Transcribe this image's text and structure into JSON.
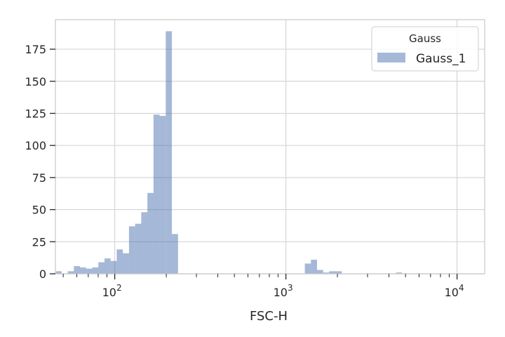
{
  "chart_data": {
    "type": "bar",
    "histogram": true,
    "title": "",
    "xlabel": "FSC-H",
    "ylabel": "",
    "xscale": "log",
    "xlim": [
      45,
      14500
    ],
    "ylim": [
      0,
      198
    ],
    "grid": true,
    "xticks": [
      {
        "value": 100,
        "base": "10",
        "exp": "2"
      },
      {
        "value": 1000,
        "base": "10",
        "exp": "3"
      },
      {
        "value": 10000,
        "base": "10",
        "exp": "4"
      }
    ],
    "yticks": [
      {
        "value": 0,
        "label": "0"
      },
      {
        "value": 25,
        "label": "25"
      },
      {
        "value": 50,
        "label": "50"
      },
      {
        "value": 75,
        "label": "75"
      },
      {
        "value": 100,
        "label": "100"
      },
      {
        "value": 125,
        "label": "125"
      },
      {
        "value": 150,
        "label": "150"
      },
      {
        "value": 175,
        "label": "175"
      }
    ],
    "legend": {
      "title": "Gauss",
      "placement": "top-right"
    },
    "series": [
      {
        "name": "Gauss_1",
        "color": "#4c72b0",
        "bins": [
          {
            "x0": 45.0,
            "x1": 48.9,
            "count": 2
          },
          {
            "x0": 48.9,
            "x1": 53.1,
            "count": 0
          },
          {
            "x0": 53.1,
            "x1": 57.7,
            "count": 2
          },
          {
            "x0": 57.7,
            "x1": 62.6,
            "count": 6
          },
          {
            "x0": 62.6,
            "x1": 68.0,
            "count": 5
          },
          {
            "x0": 68.0,
            "x1": 73.8,
            "count": 4
          },
          {
            "x0": 73.8,
            "x1": 80.2,
            "count": 5
          },
          {
            "x0": 80.2,
            "x1": 87.1,
            "count": 9
          },
          {
            "x0": 87.1,
            "x1": 94.6,
            "count": 12
          },
          {
            "x0": 94.6,
            "x1": 102.7,
            "count": 10
          },
          {
            "x0": 102.7,
            "x1": 111.5,
            "count": 19
          },
          {
            "x0": 111.5,
            "x1": 121.1,
            "count": 16
          },
          {
            "x0": 121.1,
            "x1": 131.5,
            "count": 37
          },
          {
            "x0": 131.5,
            "x1": 142.8,
            "count": 39
          },
          {
            "x0": 142.8,
            "x1": 155.1,
            "count": 48
          },
          {
            "x0": 155.1,
            "x1": 168.4,
            "count": 63
          },
          {
            "x0": 168.4,
            "x1": 182.9,
            "count": 124
          },
          {
            "x0": 182.9,
            "x1": 198.6,
            "count": 123
          },
          {
            "x0": 198.6,
            "x1": 215.7,
            "count": 189
          },
          {
            "x0": 215.7,
            "x1": 234.3,
            "count": 31
          },
          {
            "x0": 1290,
            "x1": 1400,
            "count": 8
          },
          {
            "x0": 1400,
            "x1": 1520,
            "count": 11
          },
          {
            "x0": 1520,
            "x1": 1650,
            "count": 3
          },
          {
            "x0": 1650,
            "x1": 1790,
            "count": 1
          },
          {
            "x0": 1790,
            "x1": 1950,
            "count": 2
          },
          {
            "x0": 1950,
            "x1": 2120,
            "count": 2
          },
          {
            "x0": 4400,
            "x1": 4780,
            "count": 1
          }
        ]
      }
    ]
  }
}
